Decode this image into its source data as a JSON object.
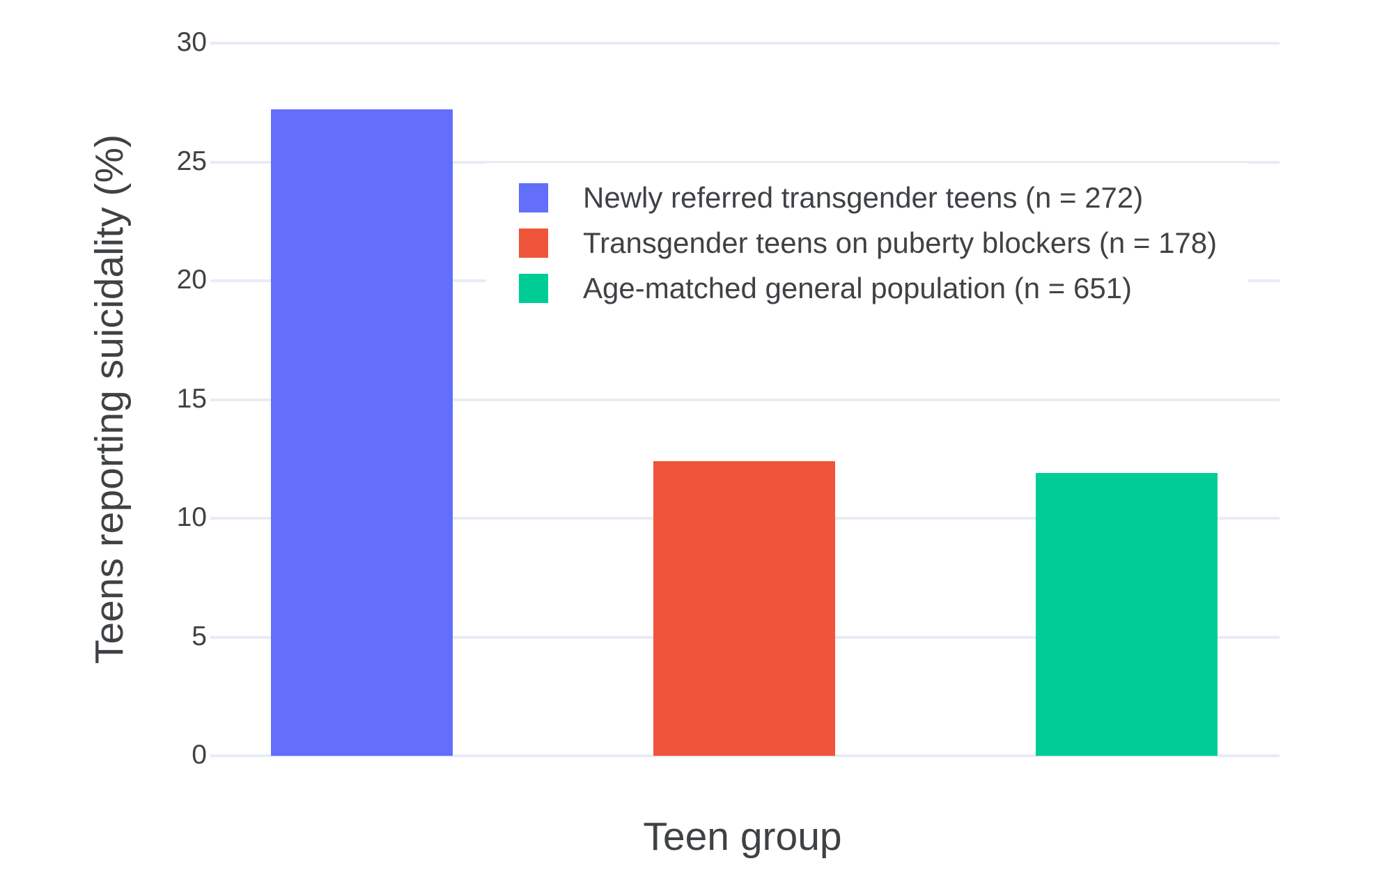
{
  "chart_data": {
    "type": "bar",
    "title": "",
    "xlabel": "Teen group",
    "ylabel": "Teens reporting suicidality (%)",
    "ylim": [
      0,
      30
    ],
    "yticks": [
      0,
      5,
      10,
      15,
      20,
      25,
      30
    ],
    "grid": true,
    "legend_position": "inside top, left of center",
    "background_color": "#ffffff",
    "grid_color": "#E7ECF5",
    "text_color": "#3F4245",
    "series": [
      {
        "name": "Newly referred transgender teens (n = 272)",
        "value": 27.2,
        "color": "#636EFA"
      },
      {
        "name": "Transgender teens on puberty blockers (n = 178)",
        "value": 12.4,
        "color": "#EF553B"
      },
      {
        "name": "Age-matched general population (n = 651)",
        "value": 11.9,
        "color": "#00CC96"
      }
    ]
  }
}
